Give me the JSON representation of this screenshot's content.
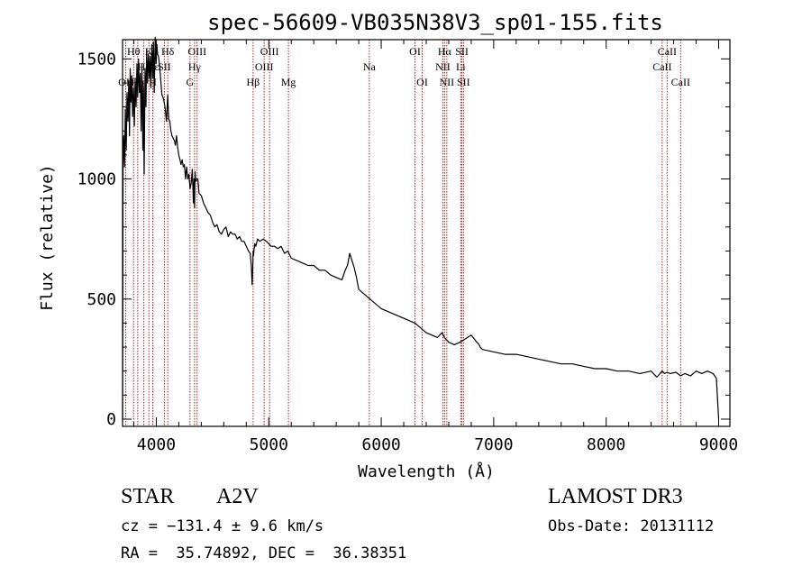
{
  "chart_data": {
    "type": "line",
    "title": "spec-56609-VB035N38V3_sp01-155.fits",
    "xlabel": "Wavelength (Å)",
    "ylabel": "Flux (relative)",
    "xlim": [
      3700,
      9100
    ],
    "ylim": [
      -30,
      1580
    ],
    "xticks": [
      4000,
      5000,
      6000,
      7000,
      8000,
      9000
    ],
    "yticks": [
      0,
      500,
      1000,
      1500
    ],
    "series": [
      {
        "name": "flux",
        "x": [
          3700,
          3705,
          3710,
          3718,
          3725,
          3733,
          3740,
          3748,
          3755,
          3762,
          3768,
          3775,
          3782,
          3790,
          3797,
          3805,
          3812,
          3820,
          3828,
          3835,
          3842,
          3850,
          3858,
          3865,
          3872,
          3880,
          3886,
          3892,
          3900,
          3908,
          3915,
          3922,
          3930,
          3938,
          3945,
          3952,
          3960,
          3968,
          3975,
          3982,
          3990,
          3998,
          4005,
          4012,
          4020,
          4030,
          4040,
          4050,
          4060,
          4070,
          4080,
          4090,
          4101,
          4110,
          4120,
          4130,
          4140,
          4150,
          4160,
          4170,
          4180,
          4190,
          4200,
          4210,
          4220,
          4230,
          4240,
          4250,
          4260,
          4270,
          4280,
          4290,
          4300,
          4310,
          4320,
          4330,
          4335,
          4340,
          4345,
          4350,
          4360,
          4370,
          4380,
          4400,
          4420,
          4440,
          4460,
          4480,
          4500,
          4520,
          4540,
          4560,
          4580,
          4600,
          4620,
          4640,
          4660,
          4680,
          4700,
          4720,
          4740,
          4760,
          4780,
          4800,
          4820,
          4835,
          4845,
          4852,
          4858,
          4861,
          4864,
          4868,
          4875,
          4885,
          4900,
          4920,
          4950,
          4980,
          5000,
          5020,
          5050,
          5080,
          5110,
          5140,
          5170,
          5200,
          5250,
          5300,
          5350,
          5400,
          5450,
          5500,
          5550,
          5600,
          5650,
          5680,
          5700,
          5720,
          5740,
          5760,
          5780,
          5800,
          5850,
          5900,
          5950,
          6000,
          6100,
          6200,
          6300,
          6400,
          6500,
          6540,
          6563,
          6580,
          6600,
          6650,
          6700,
          6800,
          6850,
          6870,
          6880,
          6900,
          7000,
          7100,
          7200,
          7300,
          7400,
          7500,
          7600,
          7700,
          7800,
          7900,
          8000,
          8100,
          8200,
          8300,
          8400,
          8450,
          8498,
          8520,
          8542,
          8570,
          8620,
          8662,
          8700,
          8750,
          8800,
          8850,
          8900,
          8950,
          8980,
          9000
        ],
        "y": [
          0,
          1080,
          1180,
          1050,
          1290,
          1120,
          1360,
          1240,
          1410,
          1180,
          1460,
          1320,
          1430,
          1260,
          1380,
          1220,
          1420,
          1300,
          1480,
          1340,
          1500,
          1360,
          1440,
          1200,
          1480,
          1120,
          1380,
          1020,
          1460,
          1300,
          1540,
          1400,
          1520,
          1420,
          1510,
          1380,
          1560,
          1420,
          1570,
          1360,
          1590,
          1480,
          1560,
          1520,
          1510,
          1470,
          1410,
          1350,
          1340,
          1320,
          1290,
          1240,
          1350,
          1250,
          1240,
          1200,
          1180,
          1170,
          1160,
          1140,
          1180,
          1130,
          1100,
          1080,
          1060,
          1080,
          1050,
          1060,
          1000,
          1050,
          1000,
          1020,
          960,
          980,
          1040,
          900,
          1000,
          880,
          1030,
          990,
          1000,
          1000,
          940,
          930,
          900,
          880,
          860,
          850,
          820,
          800,
          810,
          780,
          770,
          790,
          800,
          760,
          780,
          770,
          770,
          750,
          760,
          740,
          740,
          720,
          700,
          690,
          640,
          560,
          630,
          700,
          680,
          700,
          730,
          720,
          750,
          740,
          750,
          740,
          730,
          720,
          720,
          710,
          720,
          690,
          700,
          670,
          660,
          650,
          640,
          640,
          620,
          620,
          600,
          590,
          580,
          620,
          640,
          690,
          660,
          630,
          590,
          540,
          520,
          500,
          480,
          460,
          440,
          420,
          400,
          360,
          340,
          360,
          340,
          330,
          320,
          310,
          320,
          350,
          320,
          310,
          300,
          290,
          280,
          270,
          270,
          260,
          250,
          240,
          230,
          230,
          220,
          210,
          210,
          200,
          200,
          190,
          200,
          175,
          200,
          190,
          195,
          190,
          195,
          180,
          190,
          180,
          200,
          190,
          200,
          190,
          170,
          0
        ]
      }
    ],
    "line_markers": [
      {
        "wavelength": 3728,
        "label": "OII",
        "row": 3
      },
      {
        "wavelength": 3798,
        "label": "Hθ",
        "row": 1
      },
      {
        "wavelength": 3835,
        "label": "Hη",
        "row": 3
      },
      {
        "wavelength": 3889,
        "label": "Hζ",
        "row": 2
      },
      {
        "wavelength": 3934,
        "label": "K",
        "row": 1
      },
      {
        "wavelength": 3969,
        "label": "H",
        "row": 3
      },
      {
        "wavelength": 3970,
        "label": "Hε",
        "row": 2
      },
      {
        "wavelength": 4072,
        "label": "SII",
        "row": 2
      },
      {
        "wavelength": 4102,
        "label": "Hδ",
        "row": 1
      },
      {
        "wavelength": 4300,
        "label": "G",
        "row": 3
      },
      {
        "wavelength": 4340,
        "label": "Hγ",
        "row": 2
      },
      {
        "wavelength": 4363,
        "label": "OIII",
        "row": 1
      },
      {
        "wavelength": 4861,
        "label": "Hβ",
        "row": 3
      },
      {
        "wavelength": 4959,
        "label": "OIII",
        "row": 2
      },
      {
        "wavelength": 5007,
        "label": "OIII",
        "row": 1
      },
      {
        "wavelength": 5175,
        "label": "Mg",
        "row": 3
      },
      {
        "wavelength": 5894,
        "label": "Na",
        "row": 2
      },
      {
        "wavelength": 6300,
        "label": "OI",
        "row": 1
      },
      {
        "wavelength": 6364,
        "label": "OI",
        "row": 3
      },
      {
        "wavelength": 6548,
        "label": "NII",
        "row": 2
      },
      {
        "wavelength": 6563,
        "label": "Hα",
        "row": 1
      },
      {
        "wavelength": 6583,
        "label": "NII",
        "row": 3
      },
      {
        "wavelength": 6707,
        "label": "Li",
        "row": 2
      },
      {
        "wavelength": 6717,
        "label": "SII",
        "row": 1
      },
      {
        "wavelength": 6731,
        "label": "SII",
        "row": 3
      },
      {
        "wavelength": 8498,
        "label": "CaII",
        "row": 2
      },
      {
        "wavelength": 8542,
        "label": "CaII",
        "row": 1
      },
      {
        "wavelength": 8662,
        "label": "CaII",
        "row": 3
      }
    ]
  },
  "info": {
    "object_type": "STAR",
    "subclass": "A2V",
    "survey": "LAMOST DR3",
    "cz": "cz = −131.4 ± 9.6 km/s",
    "obs_date": "Obs-Date: 20131112",
    "coords": "RA =  35.74892, DEC =  36.38351"
  },
  "colors": {
    "spectrum": "#000000",
    "marker": "#b22222",
    "axes": "#000000"
  }
}
